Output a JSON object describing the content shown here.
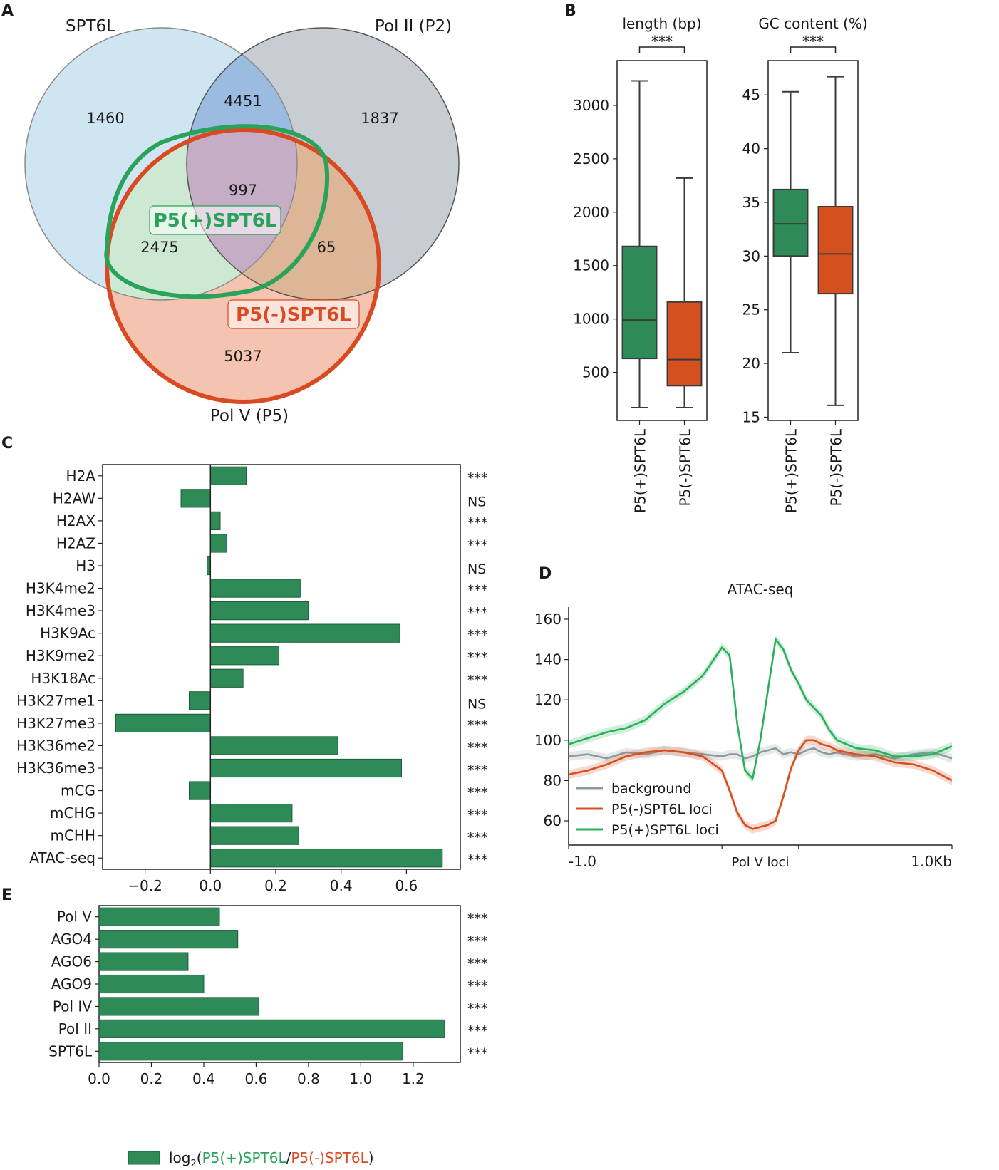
{
  "panels": {
    "a": "A",
    "b": "B",
    "c": "C",
    "d": "D",
    "e": "E"
  },
  "colors": {
    "green": "#2e8b57",
    "orange": "#d4501f",
    "grey": "#8c999f",
    "spt6l_fill": "#cfe6f2",
    "pol2_fill": "#c7cdd2",
    "pol5_fill": "#f5c4b0"
  },
  "venn": {
    "sets": {
      "spt6l": "SPT6L",
      "pol2": "Pol II (P2)",
      "pol5": "Pol V (P5)"
    },
    "counts": {
      "spt6l_only": "1460",
      "spt6l_pol2": "4451",
      "pol2_only": "1837",
      "all_three": "997",
      "spt6l_pol5": "2475",
      "pol2_pol5": "65",
      "pol5_only": "5037"
    },
    "labels": {
      "plus": "P5(+)SPT6L",
      "minus": "P5(-)SPT6L"
    }
  },
  "chart_data": [
    {
      "id": "B-length",
      "type": "box",
      "title": "length (bp)",
      "significance": "***",
      "categories": [
        "P5(+)SPT6L",
        "P5(-)SPT6L"
      ],
      "yticks": [
        500,
        1000,
        1500,
        2000,
        2500,
        3000
      ],
      "ylim": [
        50,
        3420
      ],
      "boxes": [
        {
          "whisker_low": 170,
          "q1": 630,
          "median": 990,
          "q3": 1680,
          "whisker_high": 3230
        },
        {
          "whisker_low": 170,
          "q1": 375,
          "median": 620,
          "q3": 1160,
          "whisker_high": 2320
        }
      ]
    },
    {
      "id": "B-gc",
      "type": "box",
      "title": "GC content (%)",
      "significance": "***",
      "categories": [
        "P5(+)SPT6L",
        "P5(-)SPT6L"
      ],
      "yticks": [
        15,
        20,
        25,
        30,
        35,
        40,
        45
      ],
      "ylim": [
        14.7,
        48.2
      ],
      "boxes": [
        {
          "whisker_low": 21,
          "q1": 30,
          "median": 33,
          "q3": 36.2,
          "whisker_high": 45.3
        },
        {
          "whisker_low": 16.1,
          "q1": 26.5,
          "median": 30.2,
          "q3": 34.6,
          "whisker_high": 46.7
        }
      ]
    },
    {
      "id": "C",
      "type": "bar",
      "orientation": "horizontal",
      "categories": [
        "H2A",
        "H2AW",
        "H2AX",
        "H2AZ",
        "H3",
        "H3K4me2",
        "H3K4me3",
        "H3K9Ac",
        "H3K9me2",
        "H3K18Ac",
        "H3K27me1",
        "H3K27me3",
        "H3K36me2",
        "H3K36me3",
        "mCG",
        "mCHG",
        "mCHH",
        "ATAC-seq"
      ],
      "values": [
        0.11,
        -0.09,
        0.03,
        0.05,
        -0.01,
        0.275,
        0.3,
        0.58,
        0.21,
        0.1,
        -0.065,
        -0.29,
        0.39,
        0.585,
        -0.065,
        0.25,
        0.27,
        0.71
      ],
      "significance": [
        "***",
        "NS",
        "***",
        "***",
        "NS",
        "***",
        "***",
        "***",
        "***",
        "***",
        "NS",
        "***",
        "***",
        "***",
        "***",
        "***",
        "***",
        "***"
      ],
      "xticks": [
        "−0.2",
        "0.0",
        "0.2",
        "0.4",
        "0.6"
      ],
      "xtick_values": [
        -0.2,
        0.0,
        0.2,
        0.4,
        0.6
      ],
      "xlim": [
        -0.33,
        0.765
      ]
    },
    {
      "id": "D",
      "type": "line",
      "title": "ATAC-seq",
      "x": [
        0,
        0.05,
        0.1,
        0.15,
        0.2,
        0.25,
        0.3,
        0.35,
        0.4,
        0.42,
        0.44,
        0.46,
        0.48,
        0.5,
        0.52,
        0.54,
        0.56,
        0.58,
        0.6,
        0.62,
        0.64,
        0.66,
        0.68,
        0.7,
        0.75,
        0.8,
        0.85,
        0.9,
        0.95,
        1.0
      ],
      "series": [
        {
          "name": "background",
          "values": [
            92,
            93,
            91,
            94,
            93,
            95,
            94,
            93,
            92,
            93,
            93,
            91,
            92,
            94,
            95,
            96,
            93,
            94,
            93,
            95,
            96,
            94,
            93,
            94,
            92,
            93,
            91,
            93,
            94,
            91
          ]
        },
        {
          "name": "P5(-)SPT6L loci",
          "values": [
            83,
            85,
            88,
            92,
            94,
            95,
            94,
            92,
            85,
            75,
            64,
            58,
            56,
            57,
            58,
            60,
            72,
            86,
            95,
            100,
            100,
            98,
            97,
            95,
            93,
            92,
            89,
            88,
            85,
            80
          ]
        },
        {
          "name": "P5(+)SPT6L loci",
          "values": [
            98,
            101,
            104,
            106,
            110,
            118,
            124,
            132,
            146,
            142,
            108,
            85,
            81,
            100,
            125,
            150,
            145,
            135,
            128,
            120,
            116,
            112,
            105,
            100,
            96,
            95,
            92,
            92,
            93,
            97
          ]
        }
      ],
      "ylim": [
        48,
        166
      ],
      "yticks": [
        60,
        80,
        100,
        120,
        140,
        160
      ],
      "xtick_labels": [
        "-1.0",
        "Pol V loci",
        "1.0Kb"
      ]
    },
    {
      "id": "E",
      "type": "bar",
      "orientation": "horizontal",
      "categories": [
        "Pol V",
        "AGO4",
        "AGO6",
        "AGO9",
        "Pol IV",
        "Pol II",
        "SPT6L"
      ],
      "values": [
        0.46,
        0.53,
        0.34,
        0.4,
        0.61,
        1.32,
        1.16
      ],
      "significance": [
        "***",
        "***",
        "***",
        "***",
        "***",
        "***",
        "***"
      ],
      "xticks": [
        "0.0",
        "0.2",
        "0.4",
        "0.6",
        "0.8",
        "1.0",
        "1.2"
      ],
      "xtick_values": [
        0,
        0.2,
        0.4,
        0.6,
        0.8,
        1.0,
        1.2
      ],
      "xlim": [
        0,
        1.38
      ],
      "legend": {
        "prefix": "log",
        "sub": "2",
        "open": "(",
        "num": "P5(+)SPT6L",
        "slash": "/",
        "den": "P5(-)SPT6L",
        "close": ")"
      }
    }
  ]
}
